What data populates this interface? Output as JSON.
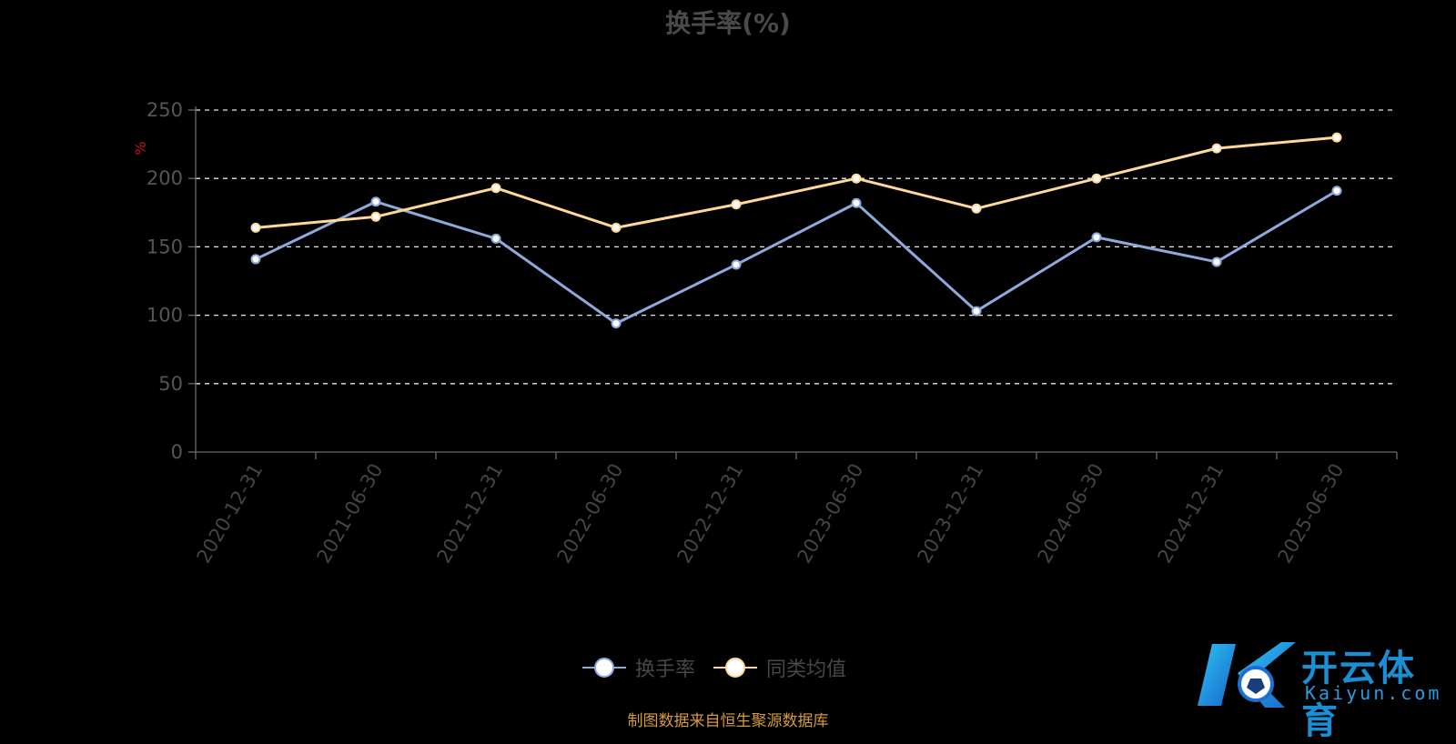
{
  "chart_data": {
    "type": "line",
    "title": "换手率(%)",
    "ylabel": "%",
    "categories": [
      "2020-12-31",
      "2021-06-30",
      "2021-12-31",
      "2022-06-30",
      "2022-12-31",
      "2023-06-30",
      "2023-12-31",
      "2024-06-30",
      "2024-12-31",
      "2025-06-30"
    ],
    "y_ticks": [
      "0",
      "50",
      "100",
      "150",
      "200",
      "250"
    ],
    "ylim": [
      0,
      250
    ],
    "grid": "dashed horizontal",
    "legend_position": "bottom-center",
    "series": [
      {
        "name": "换手率",
        "values": [
          141,
          183,
          156,
          94,
          137,
          182,
          103,
          157,
          139,
          191
        ],
        "color": "#8eaadc"
      },
      {
        "name": "同类均值",
        "values": [
          164,
          172,
          193,
          164,
          181,
          200,
          178,
          200,
          222,
          230
        ],
        "color": "#ffd899"
      }
    ]
  },
  "source_note": "制图数据来自恒生聚源数据库",
  "logo": {
    "cn_text": "开云体育",
    "en_text": "Kaiyun.com"
  }
}
